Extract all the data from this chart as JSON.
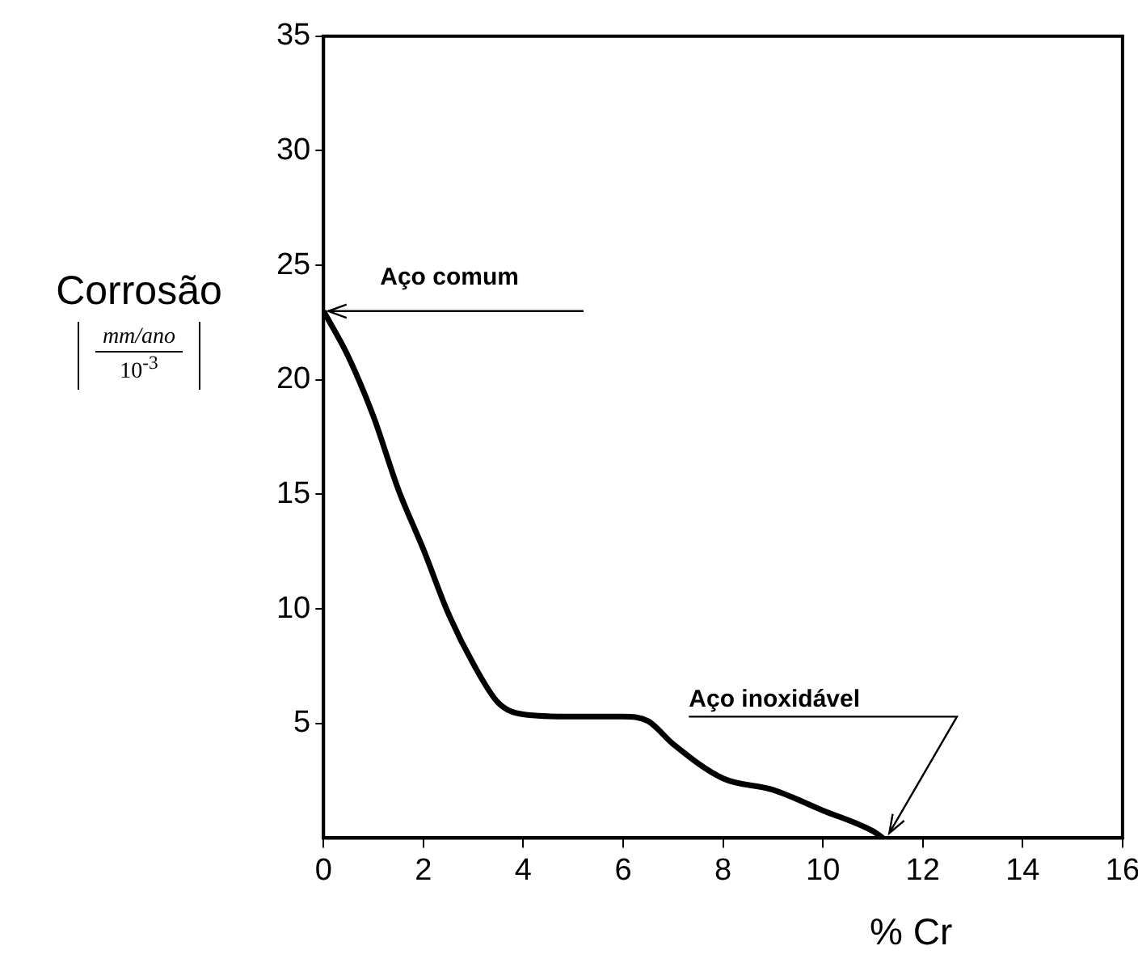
{
  "chart_data": {
    "type": "line",
    "ylabel": "Corrosão",
    "xlabel": "% Cr",
    "annotations": [
      {
        "text": "Aço comum",
        "x": 0,
        "y": 23
      },
      {
        "text": "Aço inoxidável",
        "x": 11.2,
        "y": 0
      },
      "mm/ano",
      "10$^{-3}$"
    ],
    "series": [
      {
        "color": "#000000",
        "x": [
          0,
          0.5,
          1,
          1.5,
          2,
          2.5,
          3,
          3.5,
          4,
          5,
          6,
          6.5,
          7,
          8,
          9,
          10,
          11,
          11.2
        ],
        "values": [
          23,
          21,
          18.4,
          15.2,
          12.6,
          9.8,
          7.6,
          5.9,
          5.4,
          5.3,
          5.3,
          5.1,
          4.1,
          2.6,
          2.1,
          1.2,
          0.3,
          0
        ]
      }
    ],
    "xlim": [
      0,
      16
    ],
    "xticks": [
      0,
      2,
      4,
      6,
      8,
      10,
      12,
      14,
      16
    ],
    "ylim": [
      0,
      35
    ],
    "yticks": [
      5,
      10,
      15,
      20,
      25,
      30,
      35
    ],
    "grid": false,
    "legend": false,
    "marker": "none",
    "line_style": "solid"
  }
}
